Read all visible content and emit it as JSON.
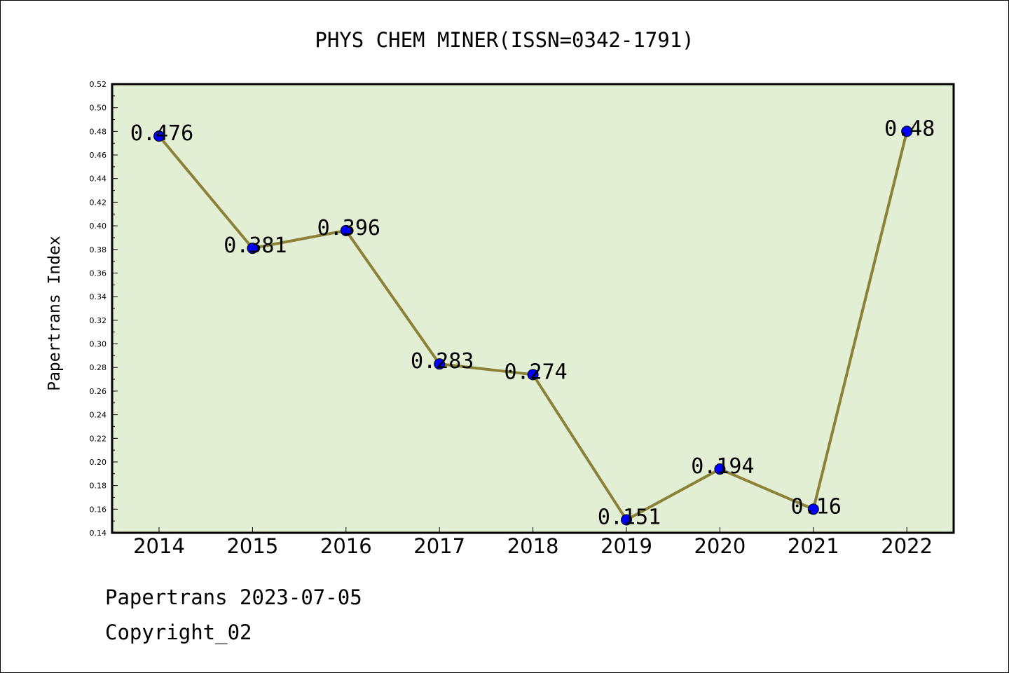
{
  "chart_data": {
    "type": "line",
    "title": "PHYS CHEM MINER(ISSN=0342-1791)",
    "xlabel": "",
    "ylabel": "Papertrans Index",
    "categories": [
      "2014",
      "2015",
      "2016",
      "2017",
      "2018",
      "2019",
      "2020",
      "2021",
      "2022"
    ],
    "values": [
      0.476,
      0.381,
      0.396,
      0.283,
      0.274,
      0.151,
      0.194,
      0.16,
      0.48
    ],
    "data_labels": [
      "0.476",
      "0.381",
      "0.396",
      "0.283",
      "0.274",
      "0.151",
      "0.194",
      "0.16",
      "0.48"
    ],
    "ylim": [
      0.14,
      0.52
    ],
    "yticks": [
      "0.14",
      "0.16",
      "0.18",
      "0.20",
      "0.22",
      "0.24",
      "0.26",
      "0.28",
      "0.30",
      "0.32",
      "0.34",
      "0.36",
      "0.38",
      "0.40",
      "0.42",
      "0.44",
      "0.46",
      "0.48",
      "0.50",
      "0.52"
    ],
    "grid": false,
    "colors": {
      "plot_background": "#e2efd5",
      "line": "#8b8237",
      "marker": "#0000ff"
    }
  },
  "footer": {
    "line1": "Papertrans 2023-07-05",
    "line2": "Copyright_02"
  }
}
